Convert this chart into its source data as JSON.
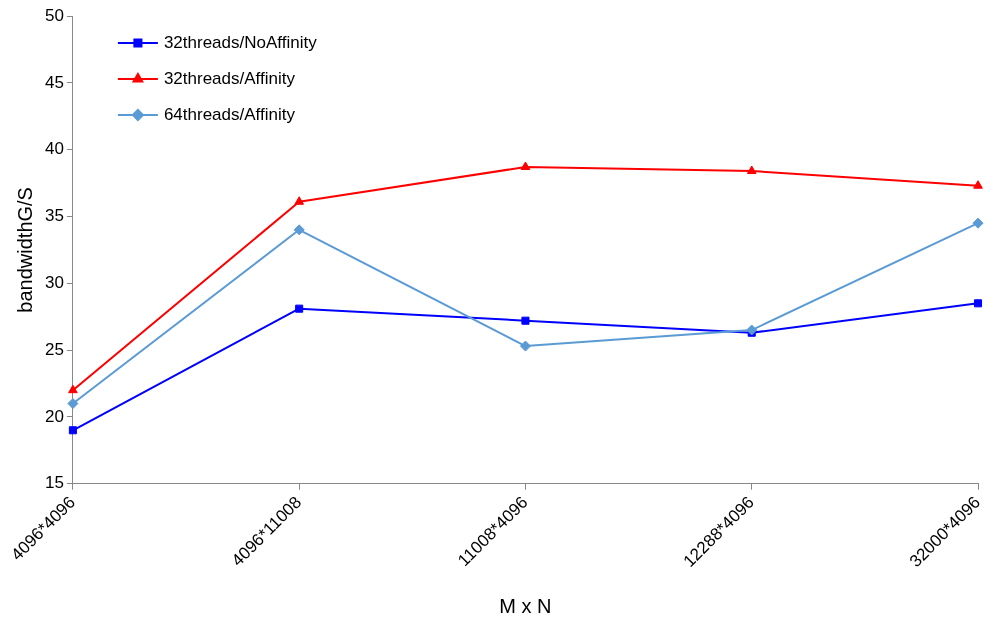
{
  "chart_data": {
    "type": "line",
    "xlabel": "M x N",
    "ylabel": "bandwidthG/S",
    "categories": [
      "4096*4096",
      "4096*11008",
      "11008*4096",
      "12288*4096",
      "32000*4096"
    ],
    "ylim": [
      15,
      50
    ],
    "yticks": [
      15,
      20,
      25,
      30,
      35,
      40,
      45,
      50
    ],
    "grid": false,
    "legend": "top left",
    "line_style": "solid",
    "series": [
      {
        "name": "32threads/NoAffinity",
        "color": "#0000ff",
        "marker": "square",
        "values": [
          19,
          28.1,
          27.2,
          26.3,
          28.5
        ]
      },
      {
        "name": "32threads/Affinity",
        "color": "#ff0000",
        "marker": "triangle",
        "values": [
          22,
          36.1,
          38.7,
          38.4,
          37.3
        ]
      },
      {
        "name": "64threads/Affinity",
        "color": "#5b9bd5",
        "marker": "diamond",
        "values": [
          21,
          34,
          25.3,
          26.5,
          34.5
        ]
      }
    ]
  }
}
